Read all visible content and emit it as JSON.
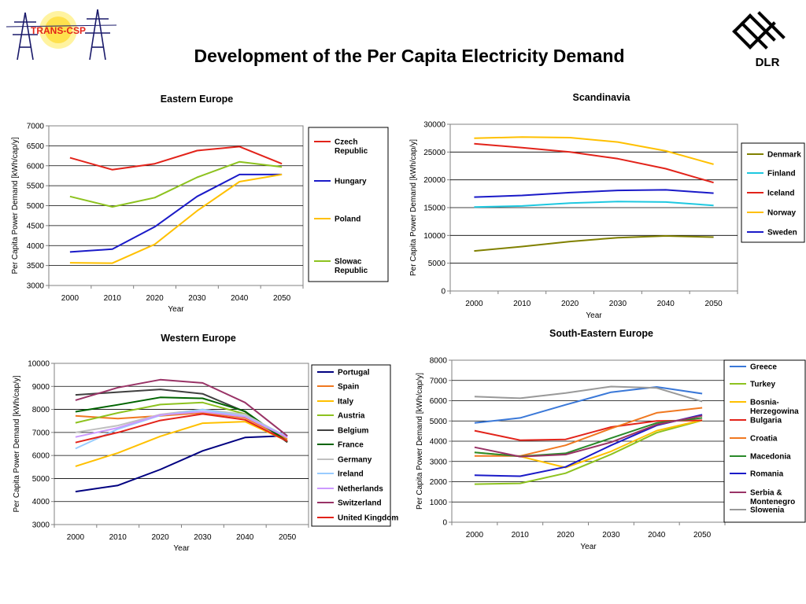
{
  "page": {
    "title": "Development of the Per Capita Electricity Demand",
    "logo_left_text": "TRANS-CSP",
    "logo_right_text": "DLR"
  },
  "chart_data": [
    {
      "id": "eastern",
      "type": "line",
      "title": "Eastern Europe",
      "xlabel": "Year",
      "ylabel": "Per Capita Power Demand [kWh/cap/y]",
      "categories": [
        "2000",
        "2010",
        "2020",
        "2030",
        "2040",
        "2050"
      ],
      "ylim": [
        3000,
        7000
      ],
      "yticks": [
        3000,
        3500,
        4000,
        4500,
        5000,
        5500,
        6000,
        6500,
        7000
      ],
      "grid": true,
      "legend_position": "right",
      "series": [
        {
          "name": "Czech Republic",
          "color": "#e2231a",
          "values": [
            6200,
            5900,
            6050,
            6380,
            6480,
            6050
          ]
        },
        {
          "name": "Hungary",
          "color": "#1a1ac8",
          "values": [
            3840,
            3910,
            4470,
            5230,
            5780,
            5780
          ]
        },
        {
          "name": "Poland",
          "color": "#ffc000",
          "values": [
            3570,
            3560,
            4030,
            4870,
            5600,
            5780
          ]
        },
        {
          "name": "Slowac Republic",
          "color": "#8dc21f",
          "values": [
            5230,
            4970,
            5200,
            5710,
            6100,
            5970
          ]
        }
      ]
    },
    {
      "id": "scandinavia",
      "type": "line",
      "title": "Scandinavia",
      "xlabel": "Year",
      "ylabel": "Per Capita Power Demand [kWh/cap/y]",
      "categories": [
        "2000",
        "2010",
        "2020",
        "2030",
        "2040",
        "2050"
      ],
      "ylim": [
        0,
        30000
      ],
      "yticks": [
        0,
        5000,
        10000,
        15000,
        20000,
        25000,
        30000
      ],
      "grid": true,
      "legend_position": "right",
      "series": [
        {
          "name": "Denmark",
          "color": "#808000",
          "values": [
            7200,
            8000,
            8900,
            9600,
            9900,
            9700
          ]
        },
        {
          "name": "Finland",
          "color": "#1ec8e0",
          "values": [
            15100,
            15300,
            15800,
            16100,
            16000,
            15400
          ]
        },
        {
          "name": "Iceland",
          "color": "#e2231a",
          "values": [
            26500,
            25800,
            25000,
            23800,
            22000,
            19500
          ]
        },
        {
          "name": "Norway",
          "color": "#ffc000",
          "values": [
            27500,
            27700,
            27600,
            26800,
            25200,
            22800
          ]
        },
        {
          "name": "Sweden",
          "color": "#1a1ac8",
          "values": [
            16900,
            17200,
            17700,
            18100,
            18200,
            17600
          ]
        }
      ]
    },
    {
      "id": "western",
      "type": "line",
      "title": "Western Europe",
      "xlabel": "Year",
      "ylabel": "Per Capita Power Demand [kWh/cap/y]",
      "categories": [
        "2000",
        "2010",
        "2020",
        "2030",
        "2040",
        "2050"
      ],
      "ylim": [
        3000,
        10000
      ],
      "yticks": [
        3000,
        4000,
        5000,
        6000,
        7000,
        8000,
        9000,
        10000
      ],
      "grid": true,
      "legend_position": "right",
      "series": [
        {
          "name": "Portugal",
          "color": "#000080",
          "values": [
            4430,
            4700,
            5390,
            6200,
            6780,
            6860
          ]
        },
        {
          "name": "Spain",
          "color": "#f07820",
          "values": [
            7720,
            7600,
            7720,
            7850,
            7640,
            6700
          ]
        },
        {
          "name": "Italy",
          "color": "#ffc000",
          "values": [
            5530,
            6110,
            6830,
            7400,
            7470,
            6620
          ]
        },
        {
          "name": "Austria",
          "color": "#8dc21f",
          "values": [
            7420,
            7850,
            8210,
            8300,
            7800,
            6620
          ]
        },
        {
          "name": "Belgium",
          "color": "#404040",
          "values": [
            8630,
            8750,
            8870,
            8680,
            7900,
            6570
          ]
        },
        {
          "name": "France",
          "color": "#006400",
          "values": [
            7900,
            8200,
            8520,
            8480,
            7920,
            6600
          ]
        },
        {
          "name": "Germany",
          "color": "#c0c0c0",
          "values": [
            7000,
            7300,
            7780,
            8000,
            7780,
            6800
          ]
        },
        {
          "name": "Ireland",
          "color": "#99ccff",
          "values": [
            6300,
            7150,
            7740,
            7990,
            7700,
            6820
          ]
        },
        {
          "name": "Netherlands",
          "color": "#cc99ff",
          "values": [
            6800,
            7200,
            7760,
            7900,
            7680,
            6780
          ]
        },
        {
          "name": "Switzerland",
          "color": "#993366",
          "values": [
            8400,
            8950,
            9290,
            9150,
            8300,
            6850
          ]
        },
        {
          "name": "United Kingdom",
          "color": "#e2231a",
          "values": [
            6560,
            7000,
            7520,
            7800,
            7550,
            6620
          ]
        }
      ]
    },
    {
      "id": "southeastern",
      "type": "line",
      "title": "South-Eastern Europe",
      "xlabel": "Year",
      "ylabel": "Per Capita Power Demand [kWh/cap/y]",
      "categories": [
        "2000",
        "2010",
        "2020",
        "2030",
        "2040",
        "2050"
      ],
      "ylim": [
        0,
        8000
      ],
      "yticks": [
        0,
        1000,
        2000,
        3000,
        4000,
        5000,
        6000,
        7000,
        8000
      ],
      "grid": true,
      "legend_position": "right",
      "series": [
        {
          "name": "Greece",
          "color": "#3a78d8",
          "values": [
            4900,
            5150,
            5800,
            6420,
            6680,
            6350
          ]
        },
        {
          "name": "Turkey",
          "color": "#8dc21f",
          "values": [
            1880,
            1920,
            2420,
            3350,
            4420,
            5030
          ]
        },
        {
          "name": "Bosnia-Herzegowina",
          "color": "#ffc000",
          "values": [
            3450,
            3250,
            2700,
            3500,
            4520,
            5040
          ]
        },
        {
          "name": "Bulgaria",
          "color": "#e2231a",
          "values": [
            4520,
            4050,
            4090,
            4700,
            5000,
            5030
          ]
        },
        {
          "name": "Croatia",
          "color": "#f07820",
          "values": [
            3270,
            3270,
            3800,
            4630,
            5400,
            5650
          ]
        },
        {
          "name": "Macedonia",
          "color": "#2a8a2a",
          "values": [
            3450,
            3250,
            3400,
            4150,
            4900,
            5150
          ]
        },
        {
          "name": "Romania",
          "color": "#1a1ac8",
          "values": [
            2320,
            2270,
            2730,
            3800,
            4780,
            5310
          ]
        },
        {
          "name": "Serbia & Montenegro",
          "color": "#993366",
          "values": [
            3700,
            3240,
            3340,
            3950,
            4820,
            5260
          ]
        },
        {
          "name": "Slowenia",
          "color": "#999999",
          "values": [
            6200,
            6120,
            6380,
            6700,
            6630,
            5960
          ]
        }
      ]
    }
  ]
}
